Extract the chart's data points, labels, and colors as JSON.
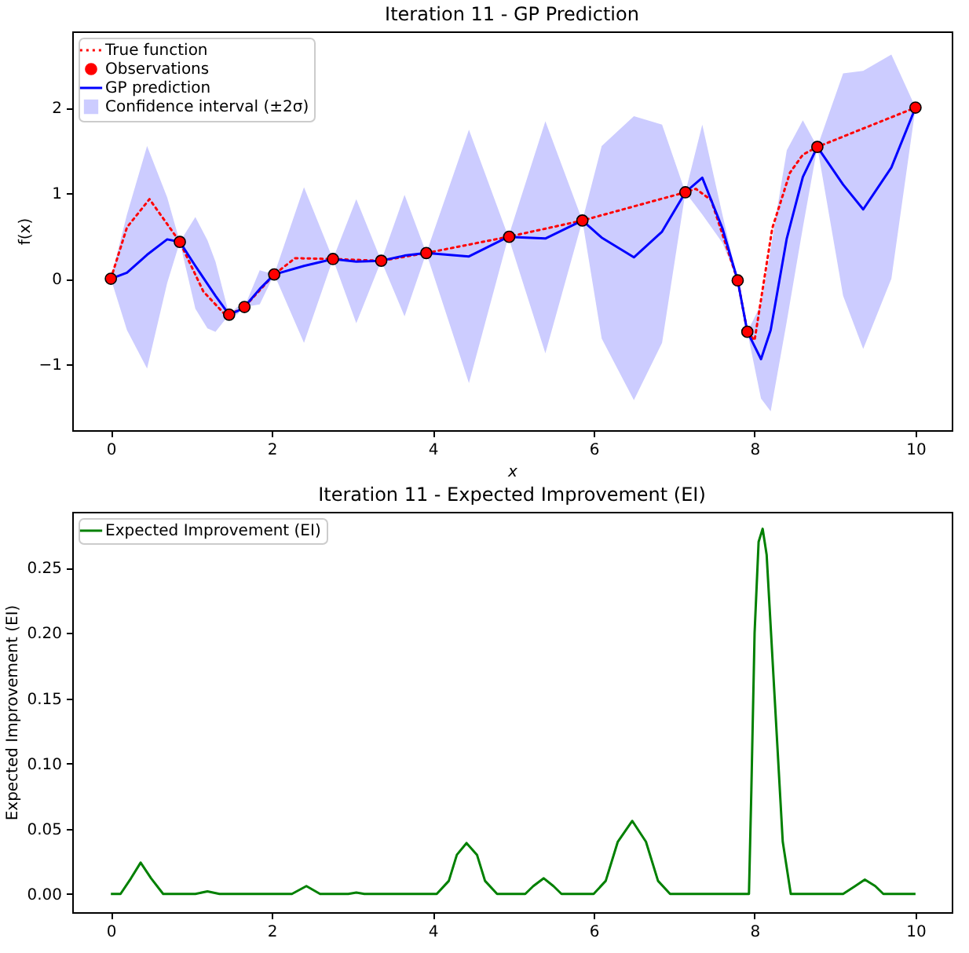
{
  "chart_data": [
    {
      "type": "line",
      "title": "Iteration 11 - GP Prediction",
      "xlabel": "x",
      "ylabel": "f(x)",
      "xlim": [
        -0.48,
        10.45
      ],
      "ylim": [
        -1.77,
        2.89
      ],
      "xticks": [
        0,
        2,
        4,
        6,
        8,
        10
      ],
      "yticks": [
        {
          "value": -1,
          "label": "−1"
        },
        {
          "value": 0,
          "label": "0"
        },
        {
          "value": 1,
          "label": "1"
        },
        {
          "value": 2,
          "label": "2"
        }
      ],
      "legend": "top left",
      "grid": false,
      "series": [
        {
          "name": "True function",
          "color": "#ff0000",
          "line_style": "dotted",
          "marker": "none",
          "x": [
            0,
            0.2,
            0.48,
            0.857,
            1.15,
            1.4,
            1.47,
            1.66,
            2.03,
            2.29,
            2.76,
            3.36,
            3.92,
            4.94,
            5.86,
            7.14,
            7.27,
            7.46,
            7.79,
            7.91,
            8.0,
            8.22,
            8.44,
            8.6,
            8.78,
            10
          ],
          "values": [
            0,
            0.6,
            0.93,
            0.43,
            -0.15,
            -0.4,
            -0.42,
            -0.33,
            0.05,
            0.24,
            0.23,
            0.21,
            0.3,
            0.49,
            0.68,
            1.01,
            1.05,
            0.92,
            -0.02,
            -0.62,
            -0.72,
            0.59,
            1.24,
            1.45,
            1.54,
            2.0
          ]
        },
        {
          "type": "scatter",
          "name": "Observations",
          "color": "#ff0000",
          "marker": "circle",
          "x": [
            0,
            0.857,
            1.47,
            1.66,
            2.03,
            2.76,
            3.36,
            3.92,
            4.95,
            5.86,
            7.14,
            7.79,
            7.91,
            8.78,
            10
          ],
          "values": [
            0,
            0.43,
            -0.42,
            -0.33,
            0.05,
            0.23,
            0.21,
            0.3,
            0.49,
            0.68,
            1.01,
            -0.02,
            -0.62,
            1.54,
            2.0
          ]
        },
        {
          "name": "GP prediction",
          "color": "#0000ff",
          "line_style": "solid",
          "marker": "none",
          "x": [
            0,
            0.2,
            0.45,
            0.7,
            0.857,
            1.05,
            1.2,
            1.3,
            1.47,
            1.57,
            1.66,
            1.85,
            2.03,
            2.4,
            2.76,
            3.05,
            3.36,
            3.65,
            3.92,
            4.45,
            4.94,
            5.4,
            5.86,
            6.1,
            6.5,
            6.85,
            7.14,
            7.35,
            7.6,
            7.79,
            7.91,
            8.08,
            8.2,
            8.4,
            8.6,
            8.78,
            9.1,
            9.35,
            9.7,
            10
          ],
          "values": [
            0,
            0.07,
            0.28,
            0.46,
            0.43,
            0.15,
            -0.06,
            -0.2,
            -0.42,
            -0.38,
            -0.33,
            -0.12,
            0.05,
            0.15,
            0.23,
            0.2,
            0.21,
            0.27,
            0.3,
            0.26,
            0.49,
            0.47,
            0.68,
            0.48,
            0.25,
            0.55,
            1.01,
            1.18,
            0.59,
            -0.02,
            -0.62,
            -0.94,
            -0.6,
            0.47,
            1.19,
            1.54,
            1.1,
            0.81,
            1.3,
            2.0
          ],
          "upper": [
            0,
            0.75,
            1.55,
            0.95,
            0.43,
            0.72,
            0.45,
            0.2,
            -0.42,
            -0.33,
            -0.33,
            0.1,
            0.05,
            1.07,
            0.23,
            0.93,
            0.21,
            0.98,
            0.3,
            1.74,
            0.49,
            1.84,
            0.68,
            1.55,
            1.9,
            1.8,
            1.01,
            1.8,
            0.75,
            -0.02,
            -0.62,
            -0.3,
            0.35,
            1.5,
            1.85,
            1.54,
            2.4,
            2.43,
            2.62,
            2.0
          ],
          "lower": [
            0,
            -0.6,
            -1.05,
            -0.05,
            0.43,
            -0.35,
            -0.58,
            -0.62,
            -0.42,
            -0.42,
            -0.33,
            -0.3,
            0.05,
            -0.75,
            0.23,
            -0.52,
            0.21,
            -0.44,
            0.3,
            -1.22,
            0.49,
            -0.87,
            0.68,
            -0.7,
            -1.42,
            -0.75,
            1.01,
            0.75,
            0.42,
            -0.02,
            -0.62,
            -1.4,
            -1.55,
            -0.5,
            0.6,
            1.54,
            -0.2,
            -0.82,
            0.0,
            2.0
          ]
        },
        {
          "type": "area",
          "name": "Confidence interval (±2σ)",
          "color": "#ccccff"
        }
      ]
    },
    {
      "type": "line",
      "title": "Iteration 11 - Expected Improvement (EI)",
      "ylabel": "Expected Improvement (EI)",
      "xlim": [
        -0.48,
        10.45
      ],
      "ylim": [
        -0.014,
        0.293
      ],
      "xticks": [
        0,
        2,
        4,
        6,
        8,
        10
      ],
      "yticks": [
        {
          "value": 0,
          "label": "0.00"
        },
        {
          "value": 0.05,
          "label": "0.05"
        },
        {
          "value": 0.1,
          "label": "0.10"
        },
        {
          "value": 0.15,
          "label": "0.15"
        },
        {
          "value": 0.2,
          "label": "0.20"
        },
        {
          "value": 0.25,
          "label": "0.25"
        }
      ],
      "legend": "top left",
      "grid": false,
      "series": [
        {
          "name": "Expected Improvement (EI)",
          "color": "#008000",
          "line_style": "solid",
          "marker": "none",
          "x": [
            0,
            0.12,
            0.25,
            0.37,
            0.5,
            0.65,
            1.05,
            1.2,
            1.35,
            2.25,
            2.43,
            2.6,
            2.95,
            3.05,
            3.15,
            4.05,
            4.2,
            4.3,
            4.42,
            4.55,
            4.65,
            4.8,
            5.15,
            5.25,
            5.38,
            5.5,
            5.6,
            6.0,
            6.15,
            6.3,
            6.48,
            6.65,
            6.8,
            6.95,
            7.93,
            7.96,
            8.0,
            8.05,
            8.1,
            8.15,
            8.25,
            8.35,
            8.45,
            9.1,
            9.25,
            9.37,
            9.5,
            9.6,
            10
          ],
          "values": [
            0,
            0,
            0.012,
            0.024,
            0.012,
            0,
            0,
            0.002,
            0,
            0,
            0.006,
            0,
            0,
            0.001,
            0,
            0,
            0.01,
            0.03,
            0.039,
            0.03,
            0.01,
            0,
            0,
            0.006,
            0.012,
            0.006,
            0,
            0,
            0.01,
            0.04,
            0.056,
            0.04,
            0.01,
            0,
            0,
            0.08,
            0.2,
            0.27,
            0.28,
            0.26,
            0.15,
            0.04,
            0,
            0,
            0.006,
            0.011,
            0.006,
            0,
            0
          ]
        }
      ]
    }
  ]
}
